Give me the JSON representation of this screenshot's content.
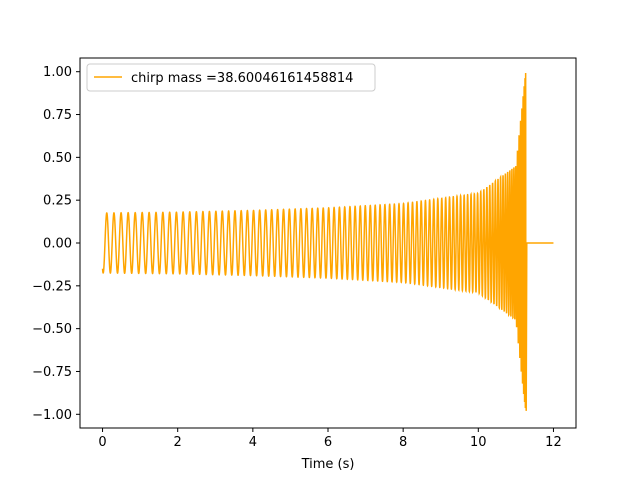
{
  "chart_data": {
    "type": "line",
    "title": "",
    "xlabel": "Time (s)",
    "ylabel": "",
    "xlim": [
      -0.6,
      12.6
    ],
    "ylim": [
      -1.08,
      1.08
    ],
    "x_ticks": [
      0,
      2,
      4,
      6,
      8,
      10,
      12
    ],
    "x_tick_labels": [
      "0",
      "2",
      "4",
      "6",
      "8",
      "10",
      "12"
    ],
    "y_ticks": [
      1.0,
      0.75,
      0.5,
      0.25,
      0.0,
      -0.25,
      -0.5,
      -0.75,
      -1.0
    ],
    "y_tick_labels": [
      "1.00",
      "0.75",
      "0.50",
      "0.25",
      "0.00",
      "−0.25",
      "−0.50",
      "−0.75",
      "−1.00"
    ],
    "grid": false,
    "legend": {
      "placement": "upper-left",
      "entries": [
        "chirp mass =38.60046161458814"
      ]
    },
    "series": [
      {
        "name": "chirp mass =38.60046161458814",
        "color": "#FFA500",
        "description_points": {
          "start": {
            "t": 0.0,
            "value": -0.15
          },
          "envelope": [
            {
              "t": 0.0,
              "amplitude": 0.175
            },
            {
              "t": 2.0,
              "amplitude": 0.18
            },
            {
              "t": 4.0,
              "amplitude": 0.19
            },
            {
              "t": 6.0,
              "amplitude": 0.205
            },
            {
              "t": 8.0,
              "amplitude": 0.23
            },
            {
              "t": 10.0,
              "amplitude": 0.29
            },
            {
              "t": 11.0,
              "amplitude": 0.45
            },
            {
              "t": 11.26,
              "amplitude": 1.0
            }
          ],
          "merger_time": 11.27,
          "post_merger_value": 0.0,
          "end_time": 12.0
        }
      }
    ]
  }
}
